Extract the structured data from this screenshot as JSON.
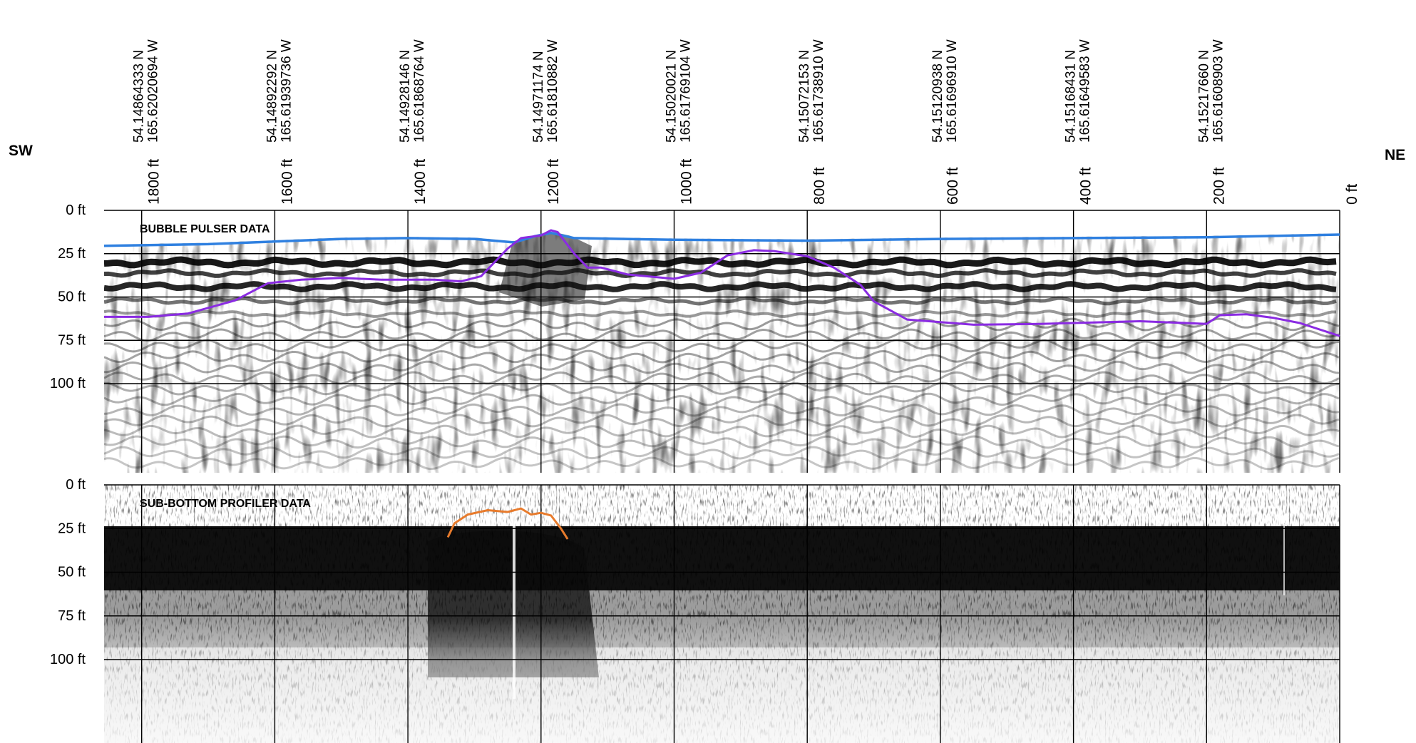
{
  "orientation": {
    "left": "SW",
    "right": "NE"
  },
  "chart_data": [
    {
      "type": "line",
      "title": "BUBBLE PULSER DATA",
      "xlabel": "",
      "ylabel": "",
      "x_reversed": true,
      "xlim": [
        0,
        1860
      ],
      "ylim": [
        0,
        115
      ],
      "x_ticks": [
        {
          "value": 1800,
          "label": "1800 ft"
        },
        {
          "value": 1600,
          "label": "1600 ft"
        },
        {
          "value": 1400,
          "label": "1400 ft"
        },
        {
          "value": 1200,
          "label": "1200 ft"
        },
        {
          "value": 1000,
          "label": "1000 ft"
        },
        {
          "value": 800,
          "label": "800 ft"
        },
        {
          "value": 600,
          "label": "600 ft"
        },
        {
          "value": 400,
          "label": "400 ft"
        },
        {
          "value": 200,
          "label": "200 ft"
        },
        {
          "value": 0,
          "label": "0 ft"
        }
      ],
      "y_ticks": [
        {
          "value": 0,
          "label": "0 ft"
        },
        {
          "value": 25,
          "label": "25 ft"
        },
        {
          "value": 50,
          "label": "50 ft"
        },
        {
          "value": 75,
          "label": "75 ft"
        },
        {
          "value": 100,
          "label": "100 ft"
        }
      ],
      "coordinates": [
        {
          "x": 1800,
          "lat": "54.14864333 N",
          "lon": "165.62020694 W"
        },
        {
          "x": 1600,
          "lat": "54.14892292 N",
          "lon": "165.61939736 W"
        },
        {
          "x": 1400,
          "lat": "54.14928146 N",
          "lon": "165.61868764 W"
        },
        {
          "x": 1200,
          "lat": "54.14971174 N",
          "lon": "165.61810882 W"
        },
        {
          "x": 1000,
          "lat": "54.15020021 N",
          "lon": "165.61769104 W"
        },
        {
          "x": 800,
          "lat": "54.15072153 N",
          "lon": "165.61738910 W"
        },
        {
          "x": 600,
          "lat": "54.15120938 N",
          "lon": "165.61696910 W"
        },
        {
          "x": 400,
          "lat": "54.15168431 N",
          "lon": "165.61649583 W"
        },
        {
          "x": 200,
          "lat": "54.15217660 N",
          "lon": "165.61608903 W"
        }
      ],
      "series": [
        {
          "color": "#2f80e0",
          "x": [
            1860,
            1700,
            1500,
            1400,
            1300,
            1240,
            1210,
            1185,
            1150,
            1000,
            800,
            600,
            400,
            200,
            0
          ],
          "y": [
            20.5,
            19.5,
            16.5,
            16.0,
            16.5,
            18.5,
            15.0,
            13.0,
            16.0,
            17.0,
            17.5,
            16.5,
            16.0,
            15.5,
            14.0
          ]
        },
        {
          "color": "#8a2be2",
          "x": [
            1860,
            1790,
            1730,
            1660,
            1610,
            1560,
            1500,
            1440,
            1400,
            1360,
            1320,
            1290,
            1250,
            1230,
            1200,
            1185,
            1175,
            1150,
            1130,
            1110,
            1070,
            1000,
            960,
            920,
            880,
            850,
            800,
            760,
            720,
            700,
            650,
            550,
            450,
            300,
            200,
            180,
            140,
            100,
            60,
            0
          ],
          "y": [
            61.5,
            61.5,
            59.5,
            52.0,
            42.0,
            40.0,
            39.0,
            40.0,
            40.0,
            40.0,
            41.0,
            38.0,
            22.0,
            16.0,
            14.5,
            11.5,
            12.5,
            25.0,
            33.0,
            33.0,
            37.0,
            39.5,
            36.0,
            26.0,
            23.0,
            23.5,
            26.5,
            33.0,
            43.0,
            52.5,
            63.0,
            66.0,
            65.5,
            64.0,
            65.5,
            60.5,
            60.0,
            62.0,
            65.0,
            72.5
          ]
        }
      ]
    },
    {
      "type": "line",
      "title": "SUB-BOTTOM PROFILER DATA",
      "xlabel": "",
      "ylabel": "",
      "x_reversed": true,
      "xlim": [
        0,
        1860
      ],
      "ylim": [
        0,
        115
      ],
      "y_ticks": [
        {
          "value": 0,
          "label": "0 ft"
        },
        {
          "value": 25,
          "label": "25 ft"
        },
        {
          "value": 50,
          "label": "50 ft"
        },
        {
          "value": 75,
          "label": "75 ft"
        },
        {
          "value": 100,
          "label": "100 ft"
        }
      ],
      "series": [
        {
          "color": "#e87b2c",
          "x": [
            1340,
            1330,
            1310,
            1280,
            1250,
            1230,
            1215,
            1200,
            1185,
            1170,
            1160
          ],
          "y": [
            30.0,
            22.0,
            17.0,
            14.5,
            15.5,
            13.5,
            17.0,
            16.0,
            17.5,
            25.0,
            31.0
          ]
        }
      ]
    }
  ]
}
